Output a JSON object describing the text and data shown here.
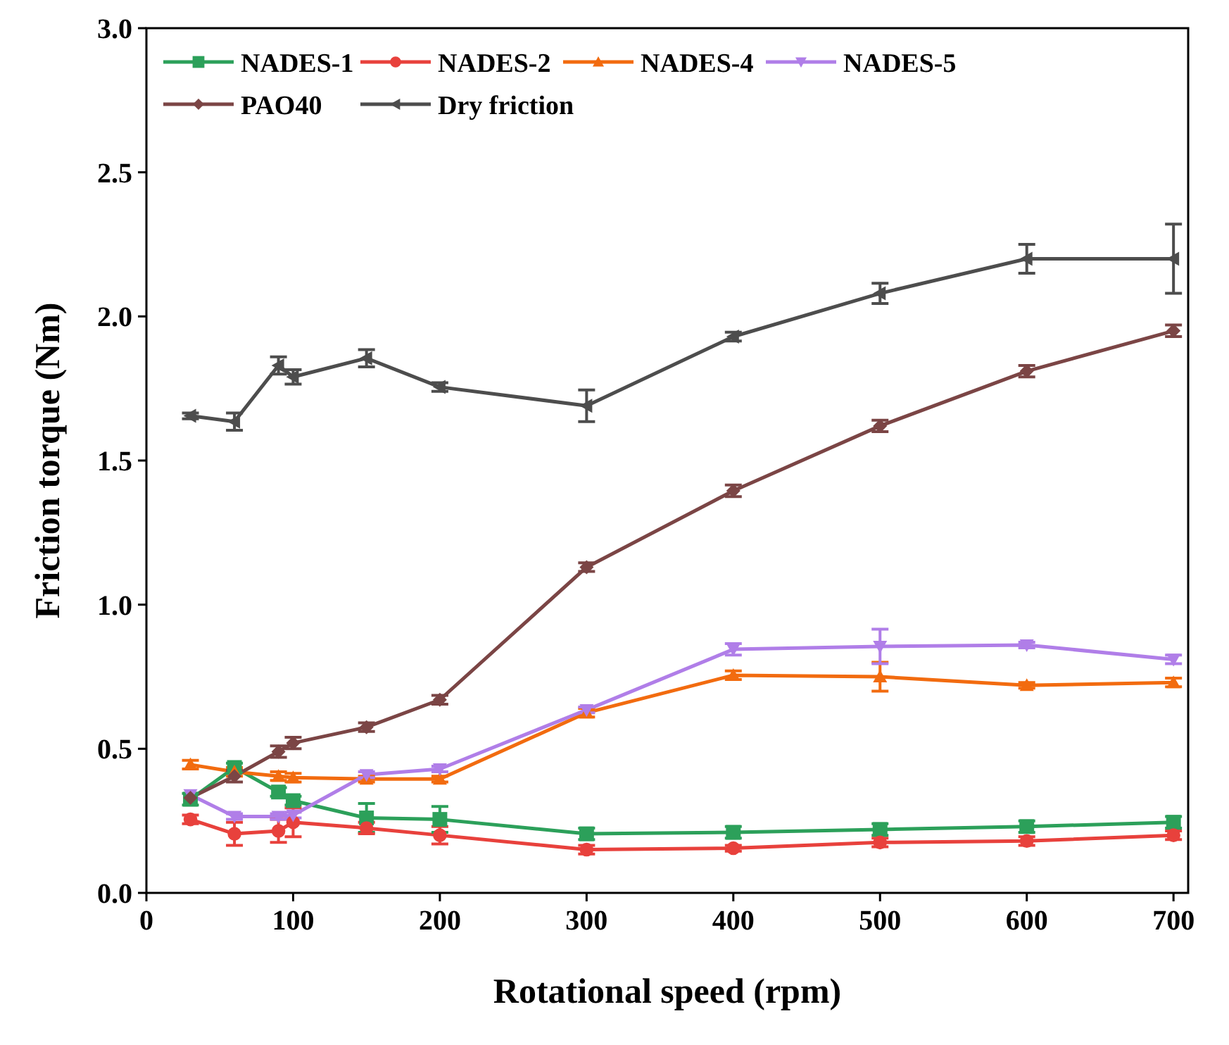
{
  "chart_data": {
    "type": "line",
    "xlabel": "Rotational speed (rpm)",
    "ylabel": "Friction torque (Nm)",
    "x": [
      30,
      60,
      90,
      100,
      150,
      200,
      300,
      400,
      500,
      600,
      700
    ],
    "xlim": [
      0,
      710
    ],
    "xticks": [
      0,
      100,
      200,
      300,
      400,
      500,
      600,
      700
    ],
    "ylim": [
      0,
      3
    ],
    "yticks": [
      {
        "value": 0,
        "label": "0.0"
      },
      {
        "value": 0.5,
        "label": "0.5"
      },
      {
        "value": 1,
        "label": "1.0"
      },
      {
        "value": 1.5,
        "label": "1.5"
      },
      {
        "value": 2,
        "label": "2.0"
      },
      {
        "value": 2.5,
        "label": "2.5"
      },
      {
        "value": 3,
        "label": "3.0"
      }
    ],
    "legend": "top left",
    "grid": false,
    "series": [
      {
        "name": "NADES-1",
        "color": "#2ca05a",
        "marker": "square",
        "values": [
          0.325,
          0.435,
          0.35,
          0.32,
          0.26,
          0.255,
          0.205,
          0.21,
          0.22,
          0.23,
          0.245
        ],
        "errors": [
          0.02,
          0.015,
          0.015,
          0.015,
          0.05,
          0.045,
          0.02,
          0.02,
          0.02,
          0.02,
          0.02
        ]
      },
      {
        "name": "NADES-2",
        "color": "#e8413c",
        "marker": "circle",
        "values": [
          0.255,
          0.205,
          0.215,
          0.245,
          0.225,
          0.2,
          0.15,
          0.155,
          0.175,
          0.18,
          0.2
        ],
        "errors": [
          0.015,
          0.04,
          0.04,
          0.05,
          0.02,
          0.03,
          0.015,
          0.01,
          0.015,
          0.015,
          0.015
        ]
      },
      {
        "name": "NADES-4",
        "color": "#f26b0f",
        "marker": "triangle",
        "values": [
          0.445,
          0.42,
          0.405,
          0.4,
          0.395,
          0.395,
          0.625,
          0.755,
          0.75,
          0.72,
          0.73
        ],
        "errors": [
          0.015,
          0.015,
          0.015,
          0.015,
          0.01,
          0.01,
          0.015,
          0.015,
          0.05,
          0.01,
          0.015
        ]
      },
      {
        "name": "NADES-5",
        "color": "#b07ee8",
        "marker": "triangle-down",
        "values": [
          0.34,
          0.265,
          0.265,
          0.27,
          0.41,
          0.43,
          0.635,
          0.845,
          0.855,
          0.86,
          0.81
        ],
        "errors": [
          null,
          0.01,
          0.01,
          0.01,
          0.01,
          0.01,
          0.01,
          0.02,
          0.06,
          0.01,
          0.015
        ]
      },
      {
        "name": "PAO40",
        "color": "#7b4545",
        "marker": "diamond",
        "values": [
          0.33,
          0.405,
          0.49,
          0.52,
          0.575,
          0.67,
          1.13,
          1.395,
          1.62,
          1.81,
          1.95
        ],
        "errors": [
          null,
          0.02,
          0.02,
          0.02,
          0.015,
          0.015,
          0.015,
          0.02,
          0.02,
          0.02,
          0.02
        ]
      },
      {
        "name": "Dry friction",
        "color": "#4d4d4d",
        "marker": "triangle-left",
        "values": [
          1.655,
          1.635,
          1.83,
          1.79,
          1.855,
          1.755,
          1.69,
          1.93,
          2.08,
          2.2,
          2.2
        ],
        "errors": [
          0.01,
          0.03,
          0.03,
          0.025,
          0.03,
          0.015,
          0.055,
          0.015,
          0.035,
          0.05,
          0.12
        ]
      }
    ]
  }
}
